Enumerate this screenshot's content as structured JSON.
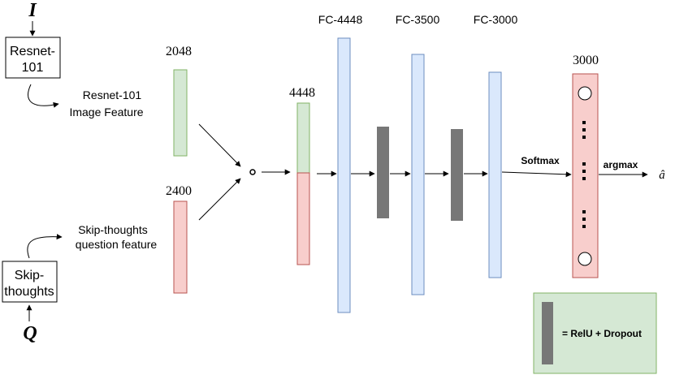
{
  "inputs": {
    "image_var": "I",
    "question_var": "Q"
  },
  "encoders": {
    "image_box": [
      "Resnet-",
      "101"
    ],
    "question_box": [
      "Skip-",
      "thoughts"
    ]
  },
  "features": {
    "image_label": [
      "Resnet-101",
      "Image Feature"
    ],
    "question_label": [
      "Skip-thoughts",
      "question feature"
    ],
    "image_dim": "2048",
    "question_dim": "2400",
    "combined_dim": "4448",
    "combine_op": "∘"
  },
  "layers": {
    "fc1": "FC-4448",
    "fc2": "FC-3500",
    "fc3": "FC-3000",
    "output_dim": "3000"
  },
  "ops": {
    "softmax": "Softmax",
    "argmax": "argmax",
    "answer": "â"
  },
  "legend": {
    "text": "= RelU + Dropout"
  },
  "colors": {
    "green_fill": "#d5e8d4",
    "green_stroke": "#82b366",
    "red_fill": "#f8cecc",
    "red_stroke": "#b85450",
    "blue_fill": "#dae8fc",
    "blue_stroke": "#6c8ebf",
    "gray": "#777777"
  }
}
